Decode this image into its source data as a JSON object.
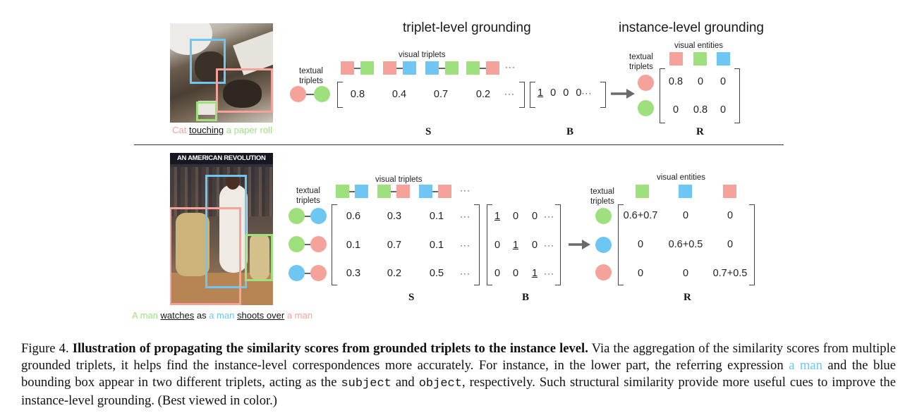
{
  "colors": {
    "red": "#f4a29a",
    "green": "#9fe07e",
    "blue": "#6ec6f2"
  },
  "top": {
    "titles": {
      "triplet": "triplet-level grounding",
      "instance": "instance-level grounding"
    },
    "label_textual_triplets": "textual\ntriplets",
    "label_visual_triplets": "visual triplets",
    "label_visual_entities": "visual entities",
    "s_values": [
      "0.8",
      "0.4",
      "0.7",
      "0.2"
    ],
    "b_values": [
      "1",
      "0",
      "0",
      "0"
    ],
    "r_rows": [
      [
        "0.8",
        "0",
        "0"
      ],
      [
        "0",
        "0.8",
        "0"
      ]
    ],
    "ellipsis": "···",
    "labels": {
      "S": "S",
      "B": "B",
      "R": "R"
    },
    "image_caption": {
      "subject": "Cat",
      "predicate": "touching",
      "object": "a paper roll"
    }
  },
  "bottom": {
    "label_textual_triplets": "textual\ntriplets",
    "label_visual_triplets": "visual triplets",
    "label_visual_entities": "visual entities",
    "s_rows": [
      [
        "0.6",
        "0.3",
        "0.1"
      ],
      [
        "0.1",
        "0.7",
        "0.1"
      ],
      [
        "0.3",
        "0.2",
        "0.5"
      ]
    ],
    "b_rows": [
      [
        "1",
        "0",
        "0"
      ],
      [
        "0",
        "1",
        "0"
      ],
      [
        "0",
        "0",
        "1"
      ]
    ],
    "r_rows": [
      [
        "0.6+0.7",
        "0",
        "0"
      ],
      [
        "0",
        "0.6+0.5",
        "0"
      ],
      [
        "0",
        "0",
        "0.7+0.5"
      ]
    ],
    "ellipsis": "···",
    "labels": {
      "S": "S",
      "B": "B",
      "R": "R"
    },
    "image_banner": "AN AMERICAN REVOLUTION",
    "image_caption": {
      "p1": "A man",
      "p2": "watches",
      "p3": "as",
      "p4": "a man",
      "p5": "shoots over",
      "p6": "a man"
    }
  },
  "caption": {
    "prefix": "Figure 4.",
    "bold": "Illustration of propagating the similarity scores from grounded triplets to the instance level.",
    "text1": "Via the aggregation of the similarity scores from multiple grounded triplets, it helps find the instance-level correspondences more accurately. For instance, in the lower part, the referring expression",
    "highlight": "a man",
    "text2": "and the blue bounding box appear in two different triplets, acting as the",
    "code1": "subject",
    "text3": "and",
    "code2": "object",
    "text4": ", respectively. Such structural similarity provide more useful cues to improve the instance-level grounding. (Best viewed in color.)"
  }
}
